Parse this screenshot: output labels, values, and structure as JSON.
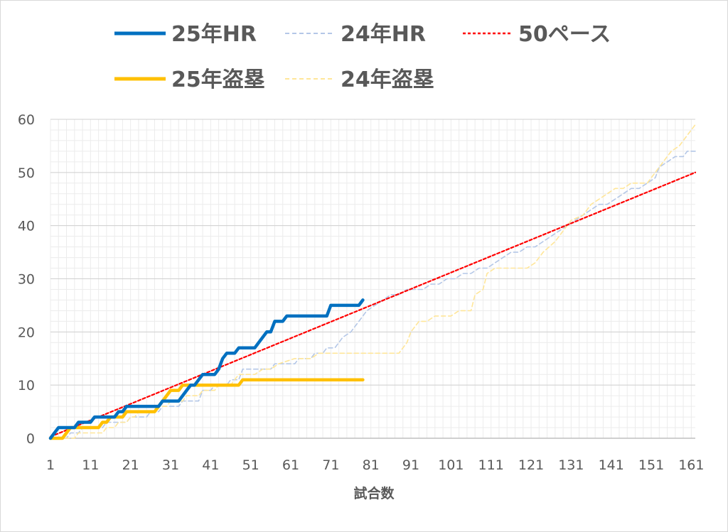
{
  "chart_data": {
    "type": "line",
    "title": "",
    "xlabel": "試合数",
    "ylabel": "",
    "xlim": [
      1,
      162
    ],
    "ylim": [
      0,
      60
    ],
    "x_ticks": [
      "1",
      "11",
      "21",
      "31",
      "41",
      "51",
      "61",
      "71",
      "81",
      "91",
      "101",
      "111",
      "121",
      "131",
      "141",
      "151",
      "161"
    ],
    "y_ticks": [
      "0",
      "10",
      "20",
      "30",
      "40",
      "50",
      "60"
    ],
    "grid": "horizontal major and minor gridlines, vertical gridlines at every 2 games",
    "legend_position": "top",
    "series": [
      {
        "name": "25年HR",
        "color": "#0070c0",
        "style": "solid-thick",
        "points": [
          [
            1,
            0
          ],
          [
            2,
            1
          ],
          [
            3,
            2
          ],
          [
            6,
            2
          ],
          [
            7,
            2
          ],
          [
            8,
            3
          ],
          [
            10,
            3
          ],
          [
            11,
            3
          ],
          [
            12,
            4
          ],
          [
            17,
            4
          ],
          [
            18,
            5
          ],
          [
            19,
            5
          ],
          [
            20,
            6
          ],
          [
            26,
            6
          ],
          [
            27,
            6
          ],
          [
            28,
            6
          ],
          [
            29,
            7
          ],
          [
            33,
            7
          ],
          [
            34,
            8
          ],
          [
            35,
            9
          ],
          [
            36,
            10
          ],
          [
            37,
            10
          ],
          [
            38,
            11
          ],
          [
            39,
            12
          ],
          [
            42,
            12
          ],
          [
            43,
            13
          ],
          [
            44,
            15
          ],
          [
            45,
            16
          ],
          [
            47,
            16
          ],
          [
            48,
            17
          ],
          [
            52,
            17
          ],
          [
            53,
            18
          ],
          [
            55,
            20
          ],
          [
            56,
            20
          ],
          [
            57,
            22
          ],
          [
            59,
            22
          ],
          [
            60,
            23
          ],
          [
            69,
            23
          ],
          [
            70,
            23
          ],
          [
            71,
            25
          ],
          [
            78,
            25
          ],
          [
            79,
            26
          ]
        ]
      },
      {
        "name": "24年HR",
        "color": "#b4c7e7",
        "style": "dashed-thin",
        "points": [
          [
            1,
            0
          ],
          [
            5,
            0
          ],
          [
            6,
            1
          ],
          [
            8,
            1
          ],
          [
            9,
            2
          ],
          [
            14,
            2
          ],
          [
            15,
            3
          ],
          [
            20,
            3
          ],
          [
            21,
            4
          ],
          [
            25,
            4
          ],
          [
            26,
            5
          ],
          [
            28,
            5
          ],
          [
            29,
            6
          ],
          [
            33,
            6
          ],
          [
            34,
            7
          ],
          [
            38,
            7
          ],
          [
            39,
            9
          ],
          [
            41,
            9
          ],
          [
            42,
            10
          ],
          [
            45,
            10
          ],
          [
            46,
            11
          ],
          [
            48,
            11
          ],
          [
            49,
            13
          ],
          [
            56,
            13
          ],
          [
            57,
            14
          ],
          [
            62,
            14
          ],
          [
            63,
            15
          ],
          [
            66,
            15
          ],
          [
            67,
            16
          ],
          [
            69,
            16
          ],
          [
            70,
            17
          ],
          [
            72,
            17
          ],
          [
            73,
            18
          ],
          [
            74,
            19
          ],
          [
            76,
            20
          ],
          [
            78,
            22
          ],
          [
            80,
            24
          ],
          [
            82,
            25
          ],
          [
            84,
            26
          ],
          [
            86,
            27
          ],
          [
            88,
            27
          ],
          [
            90,
            28
          ],
          [
            92,
            28
          ],
          [
            94,
            28
          ],
          [
            96,
            29
          ],
          [
            98,
            29
          ],
          [
            100,
            30
          ],
          [
            102,
            30
          ],
          [
            104,
            31
          ],
          [
            106,
            31
          ],
          [
            108,
            32
          ],
          [
            110,
            32
          ],
          [
            112,
            33
          ],
          [
            114,
            34
          ],
          [
            116,
            35
          ],
          [
            118,
            35
          ],
          [
            120,
            36
          ],
          [
            122,
            36
          ],
          [
            124,
            37
          ],
          [
            126,
            38
          ],
          [
            128,
            39
          ],
          [
            130,
            40
          ],
          [
            132,
            41
          ],
          [
            134,
            42
          ],
          [
            136,
            43
          ],
          [
            138,
            44
          ],
          [
            140,
            44
          ],
          [
            142,
            45
          ],
          [
            144,
            46
          ],
          [
            146,
            47
          ],
          [
            148,
            47
          ],
          [
            150,
            48
          ],
          [
            152,
            49
          ],
          [
            153,
            51
          ],
          [
            155,
            52
          ],
          [
            157,
            53
          ],
          [
            159,
            53
          ],
          [
            160,
            54
          ],
          [
            162,
            54
          ]
        ]
      },
      {
        "name": "50ペース",
        "color": "#ff0000",
        "style": "dotted",
        "points": [
          [
            1,
            0.3
          ],
          [
            162,
            50
          ]
        ]
      },
      {
        "name": "25年盗塁",
        "color": "#ffc000",
        "style": "solid-thick",
        "points": [
          [
            1,
            0
          ],
          [
            4,
            0
          ],
          [
            5,
            1
          ],
          [
            6,
            2
          ],
          [
            12,
            2
          ],
          [
            13,
            2
          ],
          [
            14,
            3
          ],
          [
            15,
            3
          ],
          [
            16,
            4
          ],
          [
            18,
            4
          ],
          [
            19,
            4
          ],
          [
            20,
            5
          ],
          [
            26,
            5
          ],
          [
            27,
            5
          ],
          [
            28,
            6
          ],
          [
            30,
            8
          ],
          [
            31,
            9
          ],
          [
            33,
            9
          ],
          [
            34,
            10
          ],
          [
            35,
            10
          ],
          [
            48,
            10
          ],
          [
            49,
            11
          ],
          [
            79,
            11
          ]
        ]
      },
      {
        "name": "24年盗塁",
        "color": "#ffe699",
        "style": "dashed-thin",
        "points": [
          [
            1,
            0
          ],
          [
            7,
            0
          ],
          [
            8,
            1
          ],
          [
            14,
            1
          ],
          [
            15,
            2
          ],
          [
            17,
            2
          ],
          [
            18,
            3
          ],
          [
            20,
            3
          ],
          [
            21,
            4
          ],
          [
            22,
            4
          ],
          [
            23,
            5
          ],
          [
            27,
            5
          ],
          [
            28,
            6
          ],
          [
            30,
            6
          ],
          [
            31,
            7
          ],
          [
            34,
            7
          ],
          [
            35,
            8
          ],
          [
            38,
            8
          ],
          [
            39,
            9
          ],
          [
            42,
            9
          ],
          [
            43,
            10
          ],
          [
            46,
            10
          ],
          [
            47,
            11
          ],
          [
            48,
            12
          ],
          [
            52,
            12
          ],
          [
            54,
            13
          ],
          [
            56,
            13
          ],
          [
            58,
            14
          ],
          [
            62,
            15
          ],
          [
            64,
            15
          ],
          [
            66,
            15
          ],
          [
            68,
            16
          ],
          [
            88,
            16
          ],
          [
            90,
            18
          ],
          [
            91,
            20
          ],
          [
            93,
            22
          ],
          [
            95,
            22
          ],
          [
            97,
            23
          ],
          [
            101,
            23
          ],
          [
            103,
            24
          ],
          [
            106,
            24
          ],
          [
            107,
            27
          ],
          [
            109,
            28
          ],
          [
            110,
            31
          ],
          [
            112,
            32
          ],
          [
            120,
            32
          ],
          [
            122,
            33
          ],
          [
            124,
            35
          ],
          [
            127,
            37
          ],
          [
            129,
            39
          ],
          [
            131,
            41
          ],
          [
            134,
            42
          ],
          [
            136,
            44
          ],
          [
            138,
            45
          ],
          [
            140,
            46
          ],
          [
            142,
            47
          ],
          [
            144,
            47
          ],
          [
            146,
            48
          ],
          [
            150,
            48
          ],
          [
            152,
            50
          ],
          [
            154,
            52
          ],
          [
            156,
            54
          ],
          [
            158,
            55
          ],
          [
            160,
            57
          ],
          [
            162,
            59
          ]
        ]
      }
    ]
  }
}
